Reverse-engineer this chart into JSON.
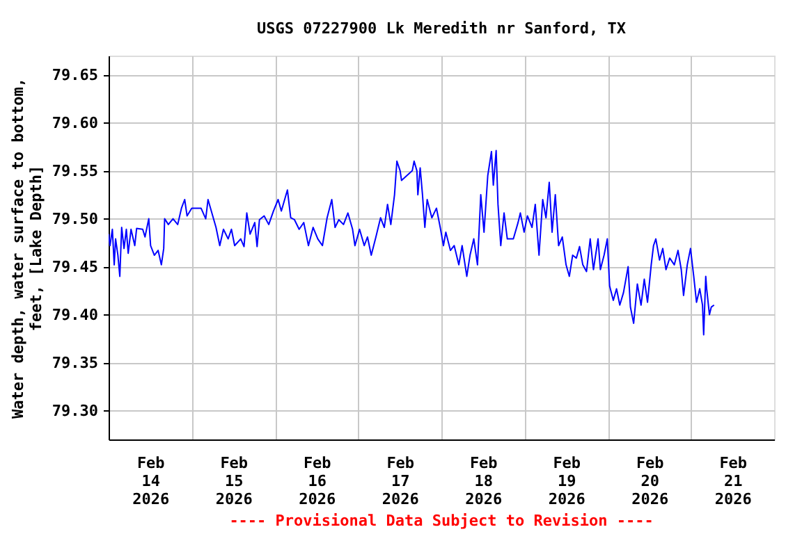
{
  "chart_data": {
    "type": "line",
    "title": "USGS 07227900 Lk Meredith nr Sanford, TX",
    "ylabel": "Water depth, water surface to bottom, feet, [Lake Depth]",
    "annotations": [
      "---- Provisional Data Subject to Revision ----"
    ],
    "xlim": [
      "2026-02-14T00:00",
      "2026-02-22T00:00"
    ],
    "xticks": [
      {
        "value": "2026-02-14T12:00",
        "label": "Feb 14 2026"
      },
      {
        "value": "2026-02-15T12:00",
        "label": "Feb 15 2026"
      },
      {
        "value": "2026-02-16T12:00",
        "label": "Feb 16 2026"
      },
      {
        "value": "2026-02-17T12:00",
        "label": "Feb 17 2026"
      },
      {
        "value": "2026-02-18T12:00",
        "label": "Feb 18 2026"
      },
      {
        "value": "2026-02-19T12:00",
        "label": "Feb 19 2026"
      },
      {
        "value": "2026-02-20T12:00",
        "label": "Feb 20 2026"
      },
      {
        "value": "2026-02-21T12:00",
        "label": "Feb 21 2026"
      },
      {
        "value": "2026-02-15T00:00",
        "label": null
      },
      {
        "value": "2026-02-16T00:00",
        "label": null
      },
      {
        "value": "2026-02-17T00:00",
        "label": null
      },
      {
        "value": "2026-02-18T00:00",
        "label": null
      },
      {
        "value": "2026-02-19T00:00",
        "label": null
      },
      {
        "value": "2026-02-20T00:00",
        "label": null
      },
      {
        "value": "2026-02-21T00:00",
        "label": null
      }
    ],
    "ylim": [
      79.27,
      79.67
    ],
    "yticks": [
      {
        "value": 79.3,
        "label": "79.30"
      },
      {
        "value": 79.35,
        "label": "79.35"
      },
      {
        "value": 79.4,
        "label": "79.40"
      },
      {
        "value": 79.45,
        "label": "79.45"
      },
      {
        "value": 79.5,
        "label": "79.50"
      },
      {
        "value": 79.55,
        "label": "79.55"
      },
      {
        "value": 79.6,
        "label": "79.60"
      },
      {
        "value": 79.65,
        "label": "79.65"
      }
    ],
    "grid": true,
    "marker": "none",
    "line_style": "solid",
    "series": [
      {
        "color": "#0000ff",
        "x": [
          "2026-02-14T00:00",
          "2026-02-14T00:24",
          "2026-02-14T01:05",
          "2026-02-14T01:37",
          "2026-02-14T02:01",
          "2026-02-14T02:41",
          "2026-02-14T03:14",
          "2026-02-14T03:46",
          "2026-02-14T04:27",
          "2026-02-14T05:07",
          "2026-02-14T05:39",
          "2026-02-14T06:28",
          "2026-02-14T07:33",
          "2026-02-14T08:05",
          "2026-02-14T09:50",
          "2026-02-14T10:30",
          "2026-02-14T11:35",
          "2026-02-14T12:07",
          "2026-02-14T13:12",
          "2026-02-14T14:17",
          "2026-02-14T15:13",
          "2026-02-14T15:54",
          "2026-02-14T16:10",
          "2026-02-14T17:14",
          "2026-02-14T18:35",
          "2026-02-14T19:56",
          "2026-02-14T21:01",
          "2026-02-14T21:57",
          "2026-02-14T22:38",
          "2026-02-14T23:59",
          "2026-02-15T02:40",
          "2026-02-15T04:01",
          "2026-02-15T04:41",
          "2026-02-15T06:02",
          "2026-02-15T06:59",
          "2026-02-15T08:04",
          "2026-02-15T09:08",
          "2026-02-15T10:29",
          "2026-02-15T11:26",
          "2026-02-15T12:22",
          "2026-02-15T14:07",
          "2026-02-15T15:04",
          "2026-02-15T15:52",
          "2026-02-15T16:49",
          "2026-02-15T18:10",
          "2026-02-15T18:50",
          "2026-02-15T19:31",
          "2026-02-15T20:52",
          "2026-02-15T22:12",
          "2026-02-15T23:33",
          "2026-02-16T00:54",
          "2026-02-16T01:50",
          "2026-02-16T03:35",
          "2026-02-16T04:32",
          "2026-02-16T05:37",
          "2026-02-16T06:58",
          "2026-02-16T08:18",
          "2026-02-16T09:39",
          "2026-02-16T11:00",
          "2026-02-16T12:21",
          "2026-02-16T13:41",
          "2026-02-16T15:02",
          "2026-02-16T16:23",
          "2026-02-16T17:20",
          "2026-02-16T18:25",
          "2026-02-16T19:46",
          "2026-02-16T21:02",
          "2026-02-16T22:23",
          "2026-02-16T23:04",
          "2026-02-17T00:24",
          "2026-02-17T01:45",
          "2026-02-17T02:41",
          "2026-02-17T03:46",
          "2026-02-17T05:07",
          "2026-02-17T06:27",
          "2026-02-17T07:32",
          "2026-02-17T08:28",
          "2026-02-17T09:25",
          "2026-02-17T10:29",
          "2026-02-17T11:10",
          "2026-02-17T12:06",
          "2026-02-17T12:30",
          "2026-02-17T15:36",
          "2026-02-17T16:08",
          "2026-02-17T16:56",
          "2026-02-17T17:13",
          "2026-02-17T17:53",
          "2026-02-17T18:33",
          "2026-02-17T19:14",
          "2026-02-17T19:54",
          "2026-02-17T21:15",
          "2026-02-17T22:35",
          "2026-02-17T23:40",
          "2026-02-18T00:36",
          "2026-02-18T01:17",
          "2026-02-18T02:37",
          "2026-02-18T03:42",
          "2026-02-18T05:02",
          "2026-02-18T05:59",
          "2026-02-18T07:20",
          "2026-02-18T08:16",
          "2026-02-18T09:21",
          "2026-02-18T10:25",
          "2026-02-18T11:22",
          "2026-02-18T12:18",
          "2026-02-18T13:23",
          "2026-02-18T14:27",
          "2026-02-18T14:59",
          "2026-02-18T15:48",
          "2026-02-18T16:20",
          "2026-02-18T17:08",
          "2026-02-18T18:05",
          "2026-02-18T19:01",
          "2026-02-18T20:46",
          "2026-02-18T22:07",
          "2026-02-18T22:47",
          "2026-02-18T23:52",
          "2026-02-19T00:49",
          "2026-02-19T02:09",
          "2026-02-19T03:05",
          "2026-02-19T04:10",
          "2026-02-19T05:14",
          "2026-02-19T06:11",
          "2026-02-19T07:07",
          "2026-02-19T07:56",
          "2026-02-19T08:52",
          "2026-02-19T09:49",
          "2026-02-19T10:53",
          "2026-02-19T11:58",
          "2026-02-19T12:55",
          "2026-02-19T13:52",
          "2026-02-19T14:56",
          "2026-02-19T15:52",
          "2026-02-19T16:48",
          "2026-02-19T17:52",
          "2026-02-19T18:56",
          "2026-02-19T19:52",
          "2026-02-19T21:12",
          "2026-02-19T21:52",
          "2026-02-19T22:56",
          "2026-02-19T23:52",
          "2026-02-20T00:32",
          "2026-02-20T01:36",
          "2026-02-20T02:32",
          "2026-02-20T03:28",
          "2026-02-20T04:32",
          "2026-02-20T05:52",
          "2026-02-20T06:32",
          "2026-02-20T07:28",
          "2026-02-20T08:32",
          "2026-02-20T09:36",
          "2026-02-20T10:32",
          "2026-02-20T11:28",
          "2026-02-20T12:32",
          "2026-02-20T13:12",
          "2026-02-20T13:52",
          "2026-02-20T14:56",
          "2026-02-20T15:52",
          "2026-02-20T16:48",
          "2026-02-20T17:52",
          "2026-02-20T19:12",
          "2026-02-20T20:16",
          "2026-02-20T21:12",
          "2026-02-20T21:52",
          "2026-02-20T22:56",
          "2026-02-20T23:52",
          "2026-02-21T00:48",
          "2026-02-21T01:36",
          "2026-02-21T02:32",
          "2026-02-21T03:20",
          "2026-02-21T03:40",
          "2026-02-21T04:16",
          "2026-02-21T04:32",
          "2026-02-21T05:20",
          "2026-02-21T05:52",
          "2026-02-21T06:40"
        ],
        "values": [
          79.484,
          79.472,
          79.489,
          79.452,
          79.479,
          79.462,
          79.44,
          79.491,
          79.469,
          79.489,
          79.464,
          79.489,
          79.472,
          79.49,
          79.489,
          79.481,
          79.5,
          79.472,
          79.462,
          79.467,
          79.452,
          79.469,
          79.5,
          79.494,
          79.5,
          79.494,
          79.511,
          79.52,
          79.503,
          79.511,
          79.511,
          79.5,
          79.52,
          79.503,
          79.491,
          79.472,
          79.489,
          79.479,
          79.489,
          79.472,
          79.479,
          79.471,
          79.506,
          79.484,
          79.496,
          79.471,
          79.499,
          79.503,
          79.494,
          79.508,
          79.52,
          79.508,
          79.53,
          79.501,
          79.499,
          79.489,
          79.496,
          79.472,
          79.491,
          79.479,
          79.472,
          79.501,
          79.52,
          79.491,
          79.499,
          79.494,
          79.506,
          79.489,
          79.472,
          79.489,
          79.472,
          79.481,
          79.462,
          79.481,
          79.501,
          79.491,
          79.515,
          79.494,
          79.525,
          79.56,
          79.55,
          79.54,
          79.55,
          79.56,
          79.55,
          79.525,
          79.553,
          79.525,
          79.491,
          79.52,
          79.501,
          79.511,
          79.491,
          79.472,
          79.486,
          79.467,
          79.472,
          79.452,
          79.472,
          79.44,
          79.462,
          79.479,
          79.452,
          79.525,
          79.486,
          79.545,
          79.57,
          79.535,
          79.571,
          79.515,
          79.472,
          79.506,
          79.479,
          79.479,
          79.496,
          79.506,
          79.486,
          79.503,
          79.491,
          79.515,
          79.462,
          79.52,
          79.501,
          79.538,
          79.486,
          79.525,
          79.472,
          79.481,
          79.452,
          79.44,
          79.462,
          79.459,
          79.471,
          79.452,
          79.445,
          79.479,
          79.447,
          79.479,
          79.447,
          79.462,
          79.479,
          79.43,
          79.415,
          79.427,
          79.41,
          79.423,
          79.45,
          79.408,
          79.391,
          79.432,
          79.41,
          79.437,
          79.413,
          79.452,
          79.472,
          79.479,
          79.457,
          79.469,
          79.447,
          79.459,
          79.452,
          79.467,
          79.447,
          79.42,
          79.452,
          79.469,
          79.44,
          79.413,
          79.427,
          79.41,
          79.379,
          79.44,
          79.427,
          79.4,
          79.408,
          79.41
        ]
      }
    ]
  }
}
